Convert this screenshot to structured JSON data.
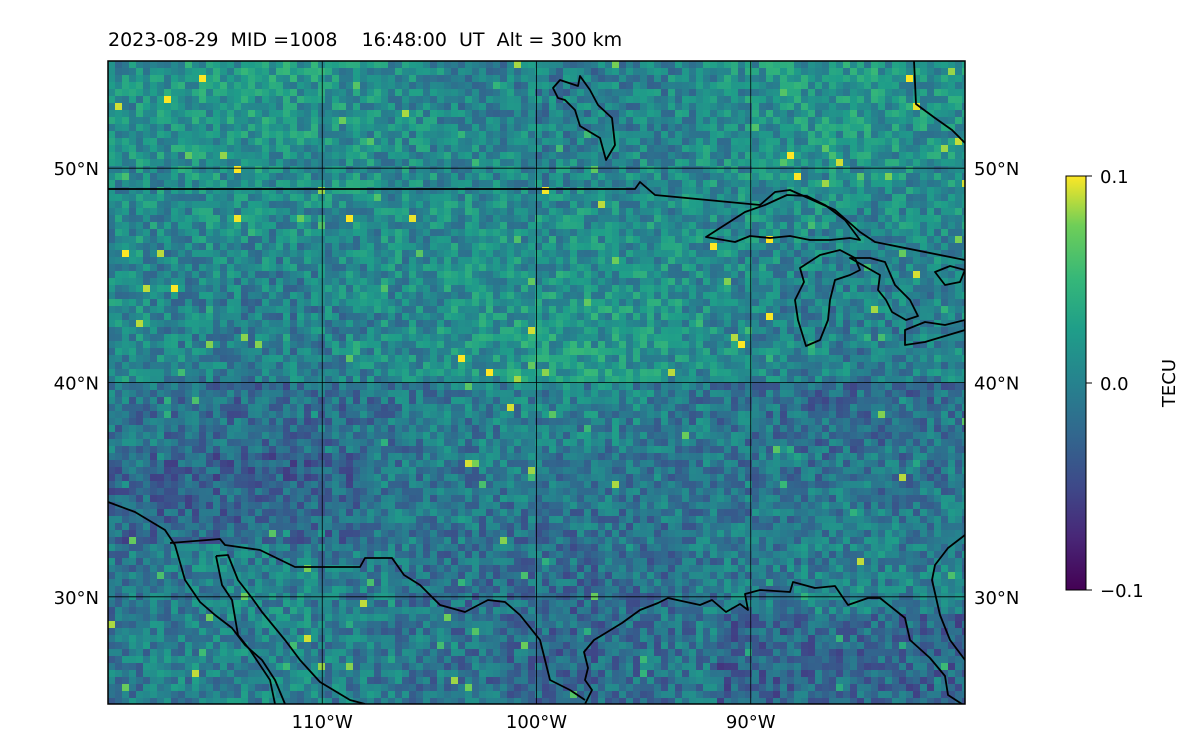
{
  "map": {
    "title": "2023-08-29  MID =1008    16:48:00  UT  Alt = 300 km",
    "lon_range": [
      -120,
      -80
    ],
    "lat_range": [
      25,
      55
    ],
    "field": "TEC anomaly",
    "lat_ticks": [
      {
        "lat": 50,
        "label": "50°N"
      },
      {
        "lat": 40,
        "label": "40°N"
      },
      {
        "lat": 30,
        "label": "30°N"
      }
    ],
    "lon_ticks": [
      {
        "lon": -110,
        "label": "110°W"
      },
      {
        "lon": -100,
        "label": "100°W"
      },
      {
        "lon": -90,
        "label": "90°W"
      }
    ],
    "gridlines": true,
    "colormap": "viridis",
    "colors": {
      "vmin": "#440154",
      "vmid": "#21918c",
      "vmax": "#fde725"
    }
  },
  "colorbar": {
    "label": "TECU",
    "ticks": [
      {
        "value": 0.1,
        "label": "0.1"
      },
      {
        "value": 0.0,
        "label": "0.0"
      },
      {
        "value": -0.1,
        "label": "−0.1"
      }
    ],
    "range": [
      -0.1,
      0.1
    ]
  }
}
